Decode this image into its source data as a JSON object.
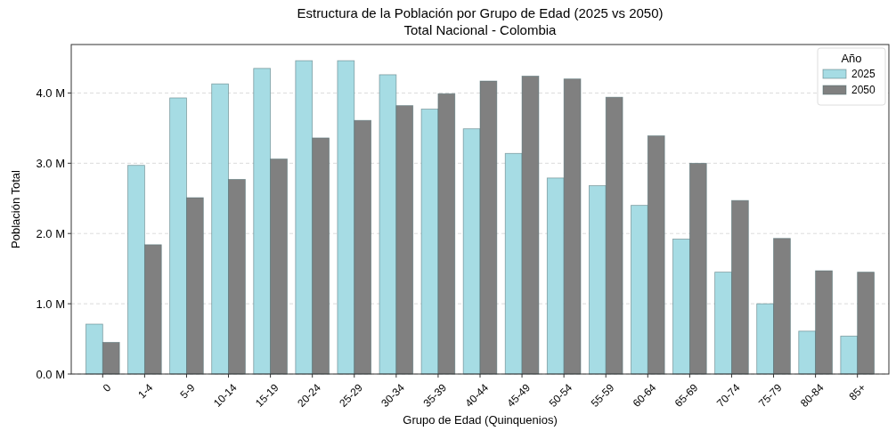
{
  "chart_data": {
    "type": "bar",
    "title": "Estructura de la Población por Grupo de Edad (2025 vs 2050)",
    "subtitle": "Total Nacional - Colombia",
    "xlabel": "Grupo de Edad (Quinquenios)",
    "ylabel": "Población Total",
    "legend_title": "Año",
    "categories": [
      "0",
      "1-4",
      "5-9",
      "10-14",
      "15-19",
      "20-24",
      "25-29",
      "30-34",
      "35-39",
      "40-44",
      "45-49",
      "50-54",
      "55-59",
      "60-64",
      "65-69",
      "70-74",
      "75-79",
      "80-84",
      "85+"
    ],
    "series": [
      {
        "name": "2025",
        "color": "#a6dce4",
        "values": [
          0.71,
          2.97,
          3.93,
          4.13,
          4.35,
          4.46,
          4.46,
          4.26,
          3.77,
          3.49,
          3.14,
          2.79,
          2.68,
          2.4,
          1.92,
          1.45,
          1.0,
          0.61,
          0.54
        ]
      },
      {
        "name": "2050",
        "color": "#808080",
        "values": [
          0.45,
          1.84,
          2.51,
          2.77,
          3.06,
          3.36,
          3.61,
          3.82,
          3.99,
          4.17,
          4.24,
          4.2,
          3.94,
          3.39,
          3.0,
          2.47,
          1.93,
          1.47,
          1.45
        ]
      }
    ],
    "ylim": [
      0,
      4.69
    ],
    "yticks": [
      {
        "value": 0,
        "label": "0.0 M"
      },
      {
        "value": 1,
        "label": "1.0 M"
      },
      {
        "value": 2,
        "label": "2.0 M"
      },
      {
        "value": 3,
        "label": "3.0 M"
      },
      {
        "value": 4,
        "label": "4.0 M"
      }
    ],
    "grid": "y",
    "legend": "top right"
  }
}
